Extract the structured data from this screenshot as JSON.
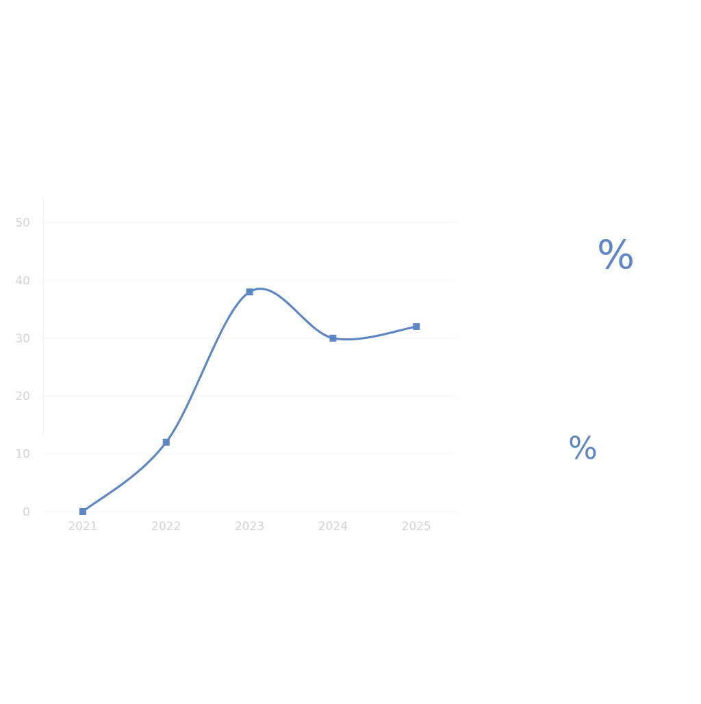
{
  "colors": {
    "series": "#5f86c4",
    "tick_text": "#d3d3d6",
    "grid": "#f6f6f6",
    "background": "#ffffff"
  },
  "side_labels": {
    "large": "%",
    "small": "%"
  },
  "chart_data": {
    "type": "line",
    "x": [
      "2021",
      "2022",
      "2023",
      "2024",
      "2025"
    ],
    "series": [
      {
        "values": [
          0,
          12,
          38,
          30,
          32
        ]
      }
    ],
    "title": "",
    "xlabel": "",
    "ylabel": "",
    "ylim": [
      0,
      50
    ],
    "yticks": [
      0,
      10,
      20,
      30,
      40,
      50
    ],
    "grid": true,
    "smooth": true,
    "marker": "square",
    "legend": "none"
  }
}
